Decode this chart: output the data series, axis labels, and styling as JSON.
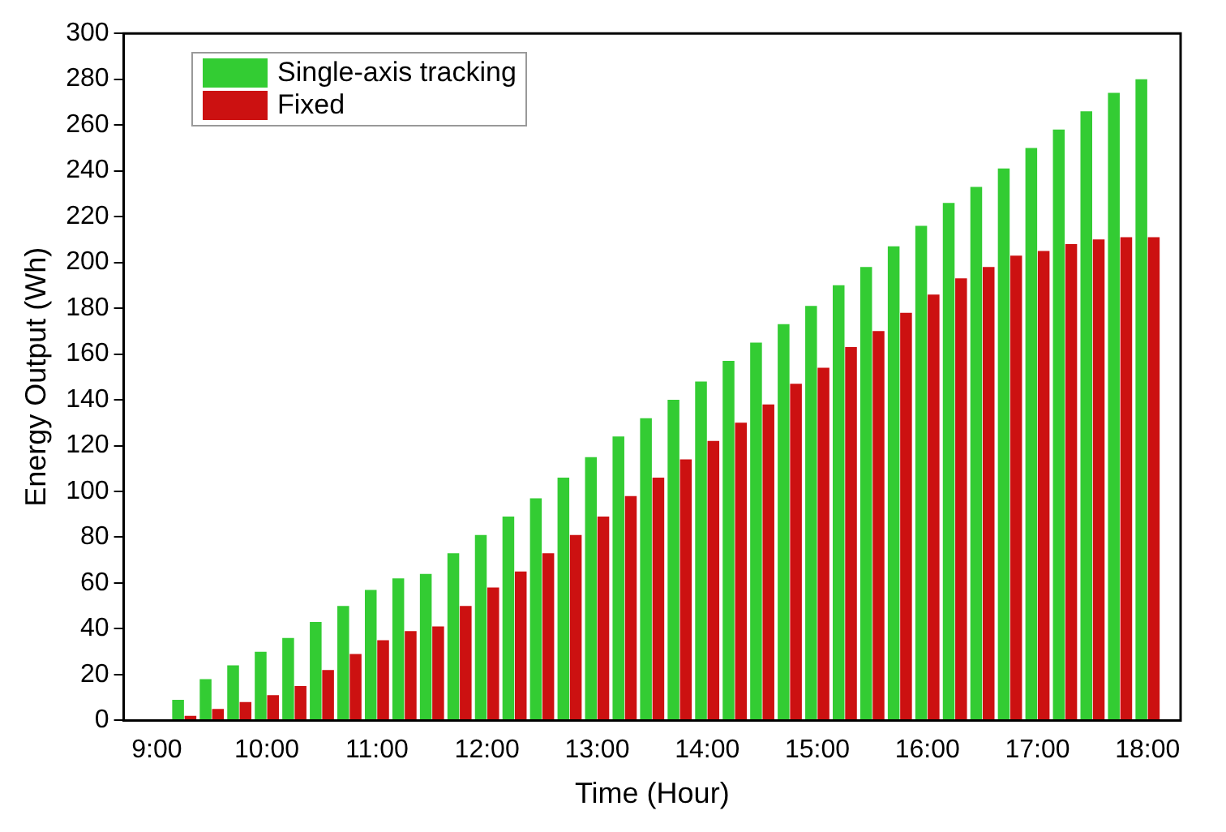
{
  "chart_data": {
    "type": "bar",
    "xlabel": "Time (Hour)",
    "ylabel": "Energy Output (Wh)",
    "x": [
      9.25,
      9.5,
      9.75,
      10,
      10.25,
      10.5,
      10.75,
      11,
      11.25,
      11.5,
      11.75,
      12,
      12.25,
      12.5,
      12.75,
      13,
      13.25,
      13.5,
      13.75,
      14,
      14.25,
      14.5,
      14.75,
      15,
      15.25,
      15.5,
      15.75,
      16,
      16.25,
      16.5,
      16.75,
      17,
      17.25,
      17.5,
      17.75,
      18
    ],
    "series": [
      {
        "name": "Single-axis tracking",
        "color": "#33cc33",
        "values": [
          9,
          18,
          24,
          30,
          36,
          43,
          50,
          57,
          62,
          64,
          73,
          81,
          89,
          97,
          106,
          115,
          124,
          132,
          140,
          148,
          157,
          165,
          173,
          181,
          190,
          198,
          207,
          216,
          226,
          233,
          241,
          250,
          258,
          266,
          274,
          280
        ]
      },
      {
        "name": "Fixed",
        "color": "#cc1111",
        "values": [
          2,
          5,
          8,
          11,
          15,
          22,
          29,
          35,
          39,
          41,
          50,
          58,
          65,
          73,
          81,
          89,
          98,
          106,
          114,
          122,
          130,
          138,
          147,
          154,
          163,
          170,
          178,
          186,
          193,
          198,
          203,
          205,
          208,
          210,
          211,
          211
        ]
      }
    ],
    "xlim": [
      8.7,
      18.3
    ],
    "xticks": [
      {
        "value": 9,
        "label": "9:00"
      },
      {
        "value": 10,
        "label": "10:00"
      },
      {
        "value": 11,
        "label": "11:00"
      },
      {
        "value": 12,
        "label": "12:00"
      },
      {
        "value": 13,
        "label": "13:00"
      },
      {
        "value": 14,
        "label": "14:00"
      },
      {
        "value": 15,
        "label": "15:00"
      },
      {
        "value": 16,
        "label": "16:00"
      },
      {
        "value": 17,
        "label": "17:00"
      },
      {
        "value": 18,
        "label": "18:00"
      }
    ],
    "ylim": [
      0,
      300
    ],
    "yticks": [
      0,
      20,
      40,
      60,
      80,
      100,
      120,
      140,
      160,
      180,
      200,
      220,
      240,
      260,
      280,
      300
    ],
    "grid": false,
    "legend": "top left"
  }
}
